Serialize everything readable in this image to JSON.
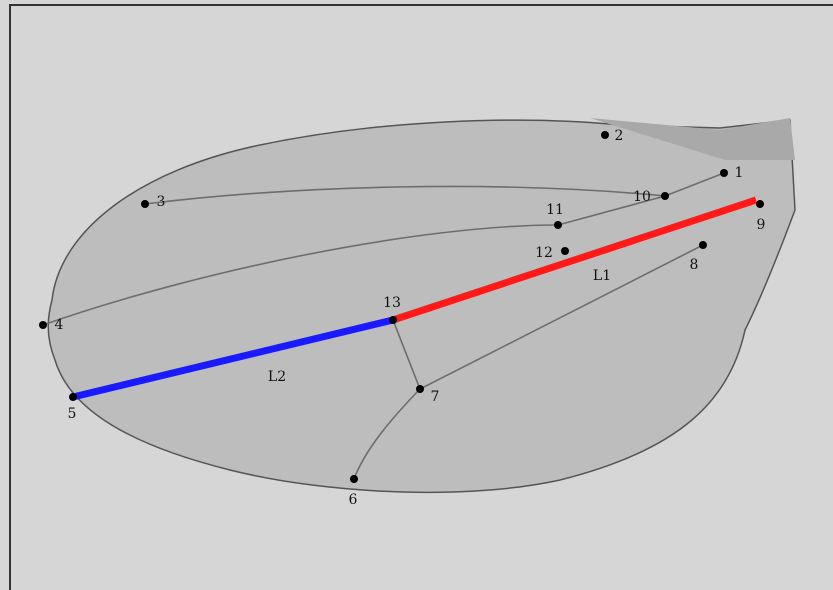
{
  "landmarks": [
    {
      "label": "1"
    },
    {
      "label": "2"
    },
    {
      "label": "3"
    },
    {
      "label": "4"
    },
    {
      "label": "5"
    },
    {
      "label": "6"
    },
    {
      "label": "7"
    },
    {
      "label": "8"
    },
    {
      "label": "9"
    },
    {
      "label": "10"
    },
    {
      "label": "11"
    },
    {
      "label": "12"
    },
    {
      "label": "13"
    }
  ],
  "lines": [
    {
      "label": "L1"
    },
    {
      "label": "L2"
    }
  ]
}
